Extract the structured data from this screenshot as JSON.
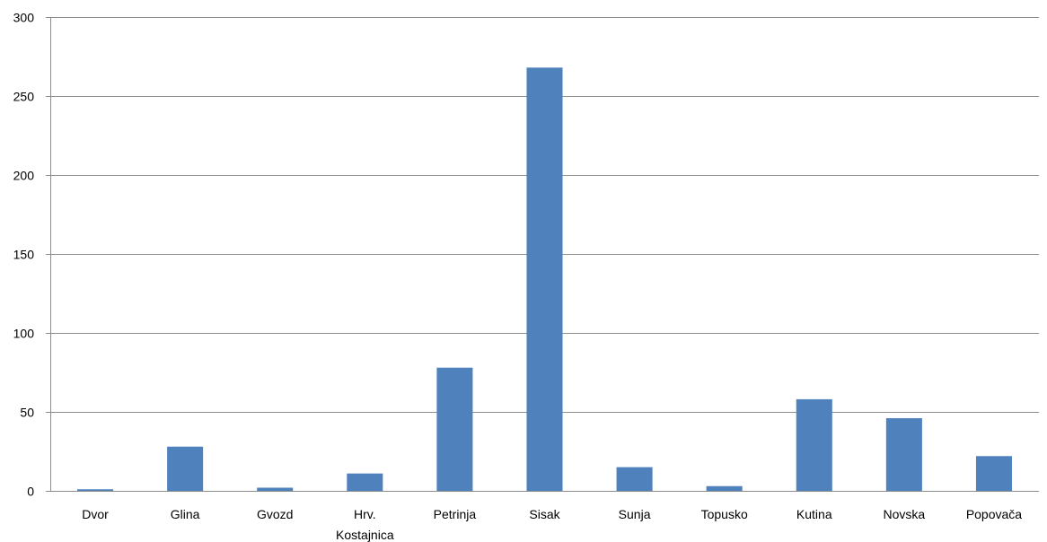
{
  "chart_data": {
    "type": "bar",
    "title": "",
    "xlabel": "",
    "ylabel": "",
    "categories": [
      [
        "Dvor"
      ],
      [
        "Glina"
      ],
      [
        "Gvozd"
      ],
      [
        "Hrv.",
        "Kostajnica"
      ],
      [
        "Petrinja"
      ],
      [
        "Sisak"
      ],
      [
        "Sunja"
      ],
      [
        "Topusko"
      ],
      [
        "Kutina"
      ],
      [
        "Novska"
      ],
      [
        "Popovača"
      ]
    ],
    "values": [
      1,
      28,
      2,
      11,
      78,
      268,
      15,
      3,
      58,
      46,
      22
    ],
    "ylim": [
      0,
      300
    ],
    "yticks": [
      0,
      50,
      100,
      150,
      200,
      250,
      300
    ],
    "grid": true,
    "legend": "none",
    "colors": {
      "bar": "#4f81bd",
      "grid": "#8c8c8c"
    }
  }
}
